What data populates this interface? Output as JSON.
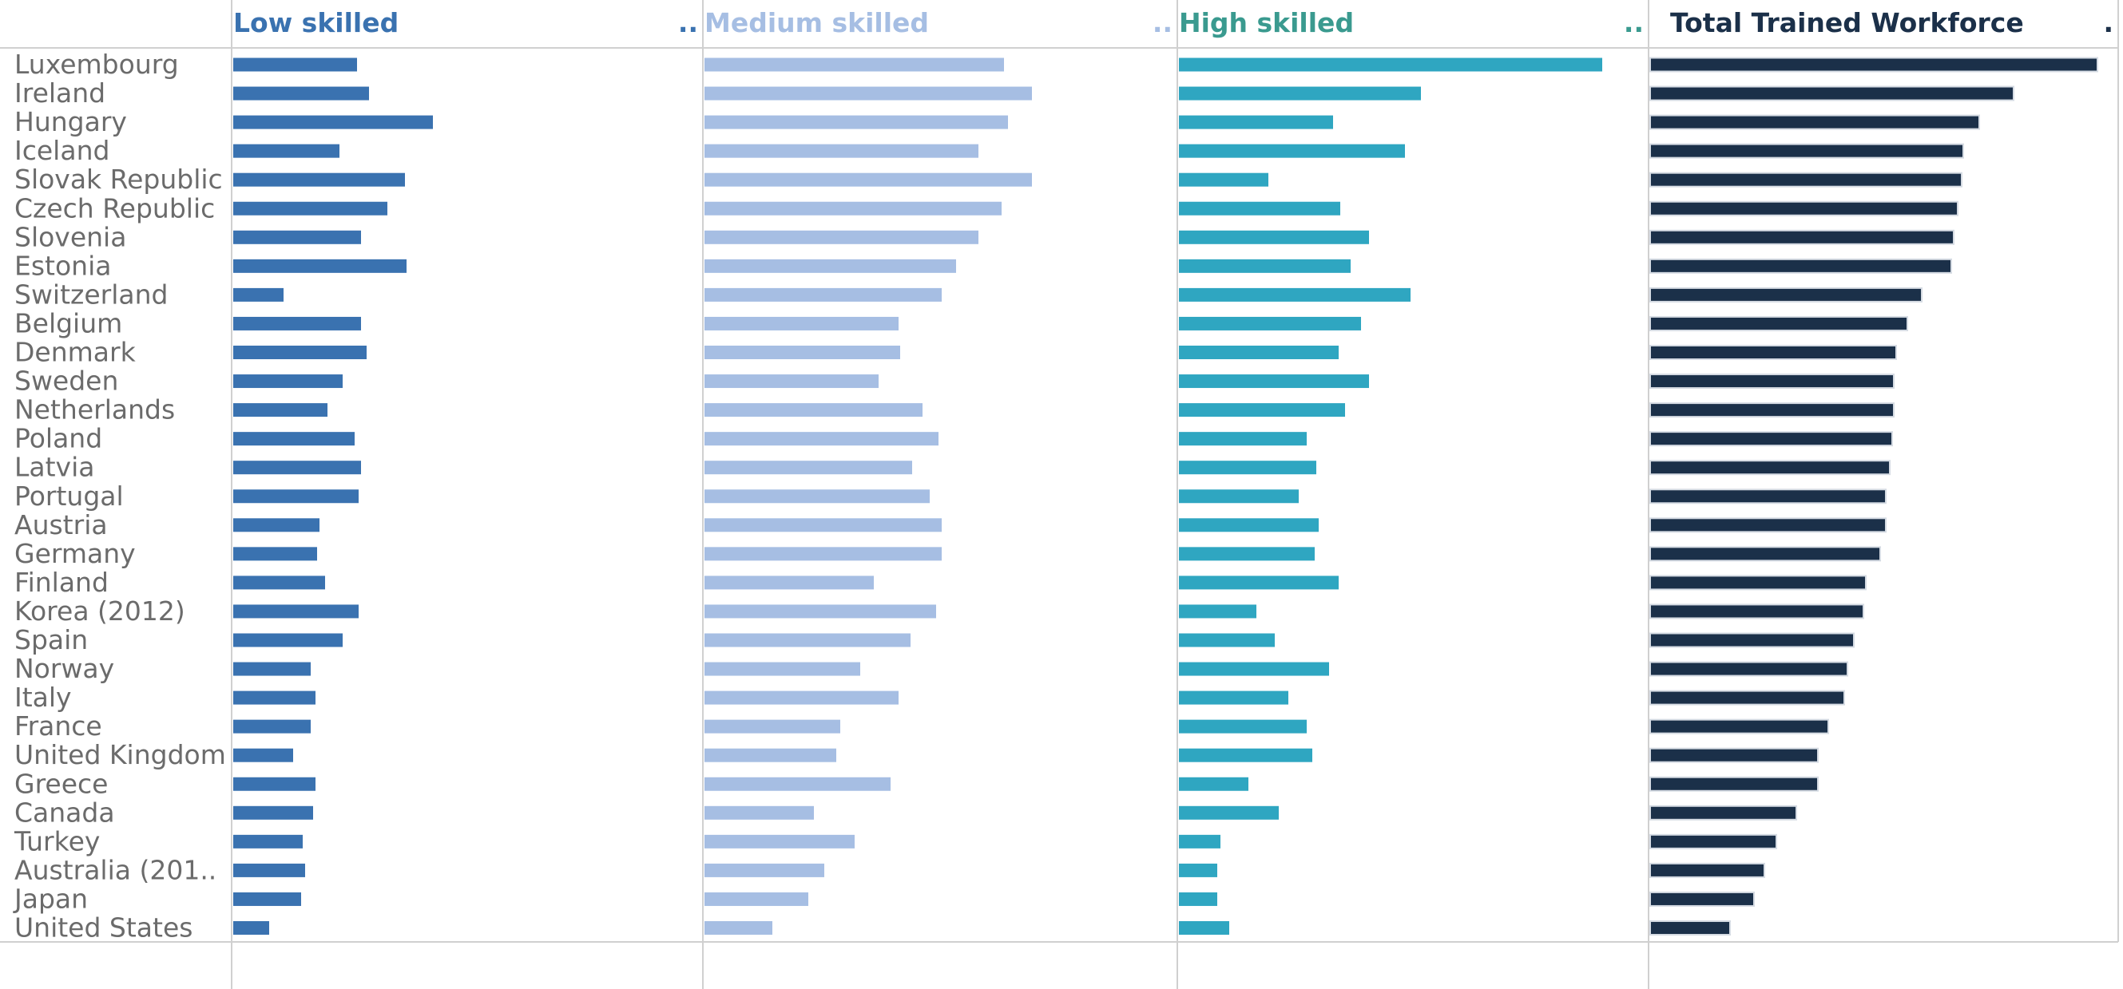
{
  "chart_data": {
    "type": "bar",
    "orientation": "horizontal",
    "categories": [
      "Luxembourg",
      "Ireland",
      "Hungary",
      "Iceland",
      "Slovak Republic",
      "Czech Republic",
      "Slovenia",
      "Estonia",
      "Switzerland",
      "Belgium",
      "Denmark",
      "Sweden",
      "Netherlands",
      "Poland",
      "Latvia",
      "Portugal",
      "Austria",
      "Germany",
      "Finland",
      "Korea (2012)",
      "Spain",
      "Norway",
      "Italy",
      "France",
      "United Kingdom",
      "Greece",
      "Canada",
      "Turkey",
      "Australia (201..",
      "Japan",
      "United States"
    ],
    "series": [
      {
        "name": "Low skilled",
        "color": "#3a72b0",
        "header_suffix": "..",
        "values": [
          155,
          170,
          250,
          133,
          215,
          193,
          160,
          217,
          63,
          160,
          167,
          137,
          118,
          152,
          160,
          157,
          108,
          105,
          115,
          157,
          137,
          97,
          103,
          97,
          75,
          103,
          100,
          87,
          90,
          85,
          45
        ]
      },
      {
        "name": "Medium skilled",
        "color": "#a6bee3",
        "header_suffix": "..",
        "values": [
          375,
          410,
          380,
          343,
          410,
          372,
          343,
          315,
          297,
          243,
          245,
          218,
          273,
          293,
          260,
          282,
          297,
          297,
          212,
          290,
          258,
          195,
          243,
          170,
          165,
          233,
          137,
          188,
          150,
          130,
          85
        ]
      },
      {
        "name": "High skilled",
        "color": "#2fa6c1",
        "header_color": "#3a9a8f",
        "header_suffix": "..",
        "values": [
          530,
          303,
          193,
          283,
          112,
          202,
          238,
          215,
          290,
          228,
          200,
          238,
          208,
          160,
          172,
          150,
          175,
          170,
          200,
          97,
          120,
          188,
          137,
          160,
          167,
          87,
          125,
          52,
          48,
          48,
          63
        ]
      },
      {
        "name": "Total Trained Workforce",
        "color": "#1b3049",
        "header_color": "#1b3049",
        "header_suffix": ".",
        "values": [
          560,
          455,
          412,
          392,
          390,
          385,
          380,
          377,
          340,
          322,
          308,
          305,
          305,
          303,
          300,
          295,
          295,
          288,
          270,
          267,
          255,
          247,
          243,
          223,
          210,
          210,
          183,
          158,
          143,
          130,
          100
        ]
      }
    ],
    "xlim": [
      0,
      560
    ],
    "grid": false,
    "legend": "none"
  }
}
